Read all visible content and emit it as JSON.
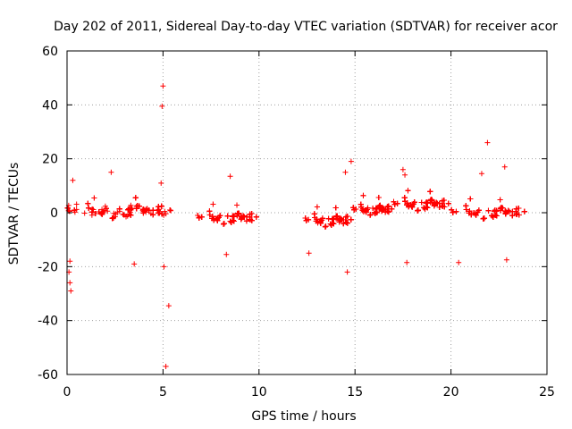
{
  "chart_data": {
    "type": "scatter",
    "title": "Day 202 of 2011, Sidereal Day-to-day VTEC variation (SDTVAR) for receiver acor",
    "xlabel": "GPS time / hours",
    "ylabel": "SDTVAR / TECUs",
    "xlim": [
      0,
      25
    ],
    "ylim": [
      -60,
      60
    ],
    "xticks": [
      0,
      5,
      10,
      15,
      20,
      25
    ],
    "xtick_labels": [
      "0",
      "5",
      "10",
      "15",
      "20",
      "25"
    ],
    "yticks": [
      -60,
      -40,
      -20,
      0,
      20,
      40,
      60
    ],
    "ytick_labels": [
      "-60",
      "-40",
      "-20",
      "0",
      "20",
      "40",
      "60"
    ],
    "grid": true,
    "marker": "+",
    "color": "#ff0000",
    "series": [
      {
        "name": "SDTVAR",
        "segments": [
          {
            "t0": 0.0,
            "t1": 5.6,
            "base": 0.5,
            "spread": 3.5
          },
          {
            "t0": 6.8,
            "t1": 10.0,
            "base": -2.0,
            "spread": 3.0
          },
          {
            "t0": 12.4,
            "t1": 14.9,
            "base": -3.0,
            "spread": 3.0
          },
          {
            "t0": 14.9,
            "t1": 17.0,
            "base": 1.0,
            "spread": 2.5
          },
          {
            "t0": 17.0,
            "t1": 20.0,
            "base": 3.0,
            "spread": 3.0
          },
          {
            "t0": 20.0,
            "t1": 24.0,
            "base": 0.0,
            "spread": 3.0
          }
        ],
        "outliers": [
          {
            "x": 5.0,
            "y": 47
          },
          {
            "x": 4.95,
            "y": 39.5
          },
          {
            "x": 5.3,
            "y": -34.5
          },
          {
            "x": 5.15,
            "y": -57
          },
          {
            "x": 5.05,
            "y": -20
          },
          {
            "x": 0.2,
            "y": -29
          },
          {
            "x": 0.15,
            "y": -26
          },
          {
            "x": 0.1,
            "y": -22
          },
          {
            "x": 0.15,
            "y": -18
          },
          {
            "x": 3.5,
            "y": -19
          },
          {
            "x": 14.6,
            "y": -22
          },
          {
            "x": 14.8,
            "y": 19
          },
          {
            "x": 14.5,
            "y": 15
          },
          {
            "x": 21.9,
            "y": 26
          },
          {
            "x": 22.8,
            "y": 17
          },
          {
            "x": 22.9,
            "y": -17.5
          },
          {
            "x": 17.7,
            "y": -18.5
          },
          {
            "x": 20.4,
            "y": -18.5
          },
          {
            "x": 8.5,
            "y": 13.5
          },
          {
            "x": 2.3,
            "y": 15
          },
          {
            "x": 12.6,
            "y": -15
          },
          {
            "x": 8.3,
            "y": -15.5
          },
          {
            "x": 4.9,
            "y": 11
          },
          {
            "x": 17.5,
            "y": 16
          },
          {
            "x": 17.6,
            "y": 14
          },
          {
            "x": 0.3,
            "y": 12
          },
          {
            "x": 21.6,
            "y": 14.5
          }
        ]
      }
    ]
  }
}
